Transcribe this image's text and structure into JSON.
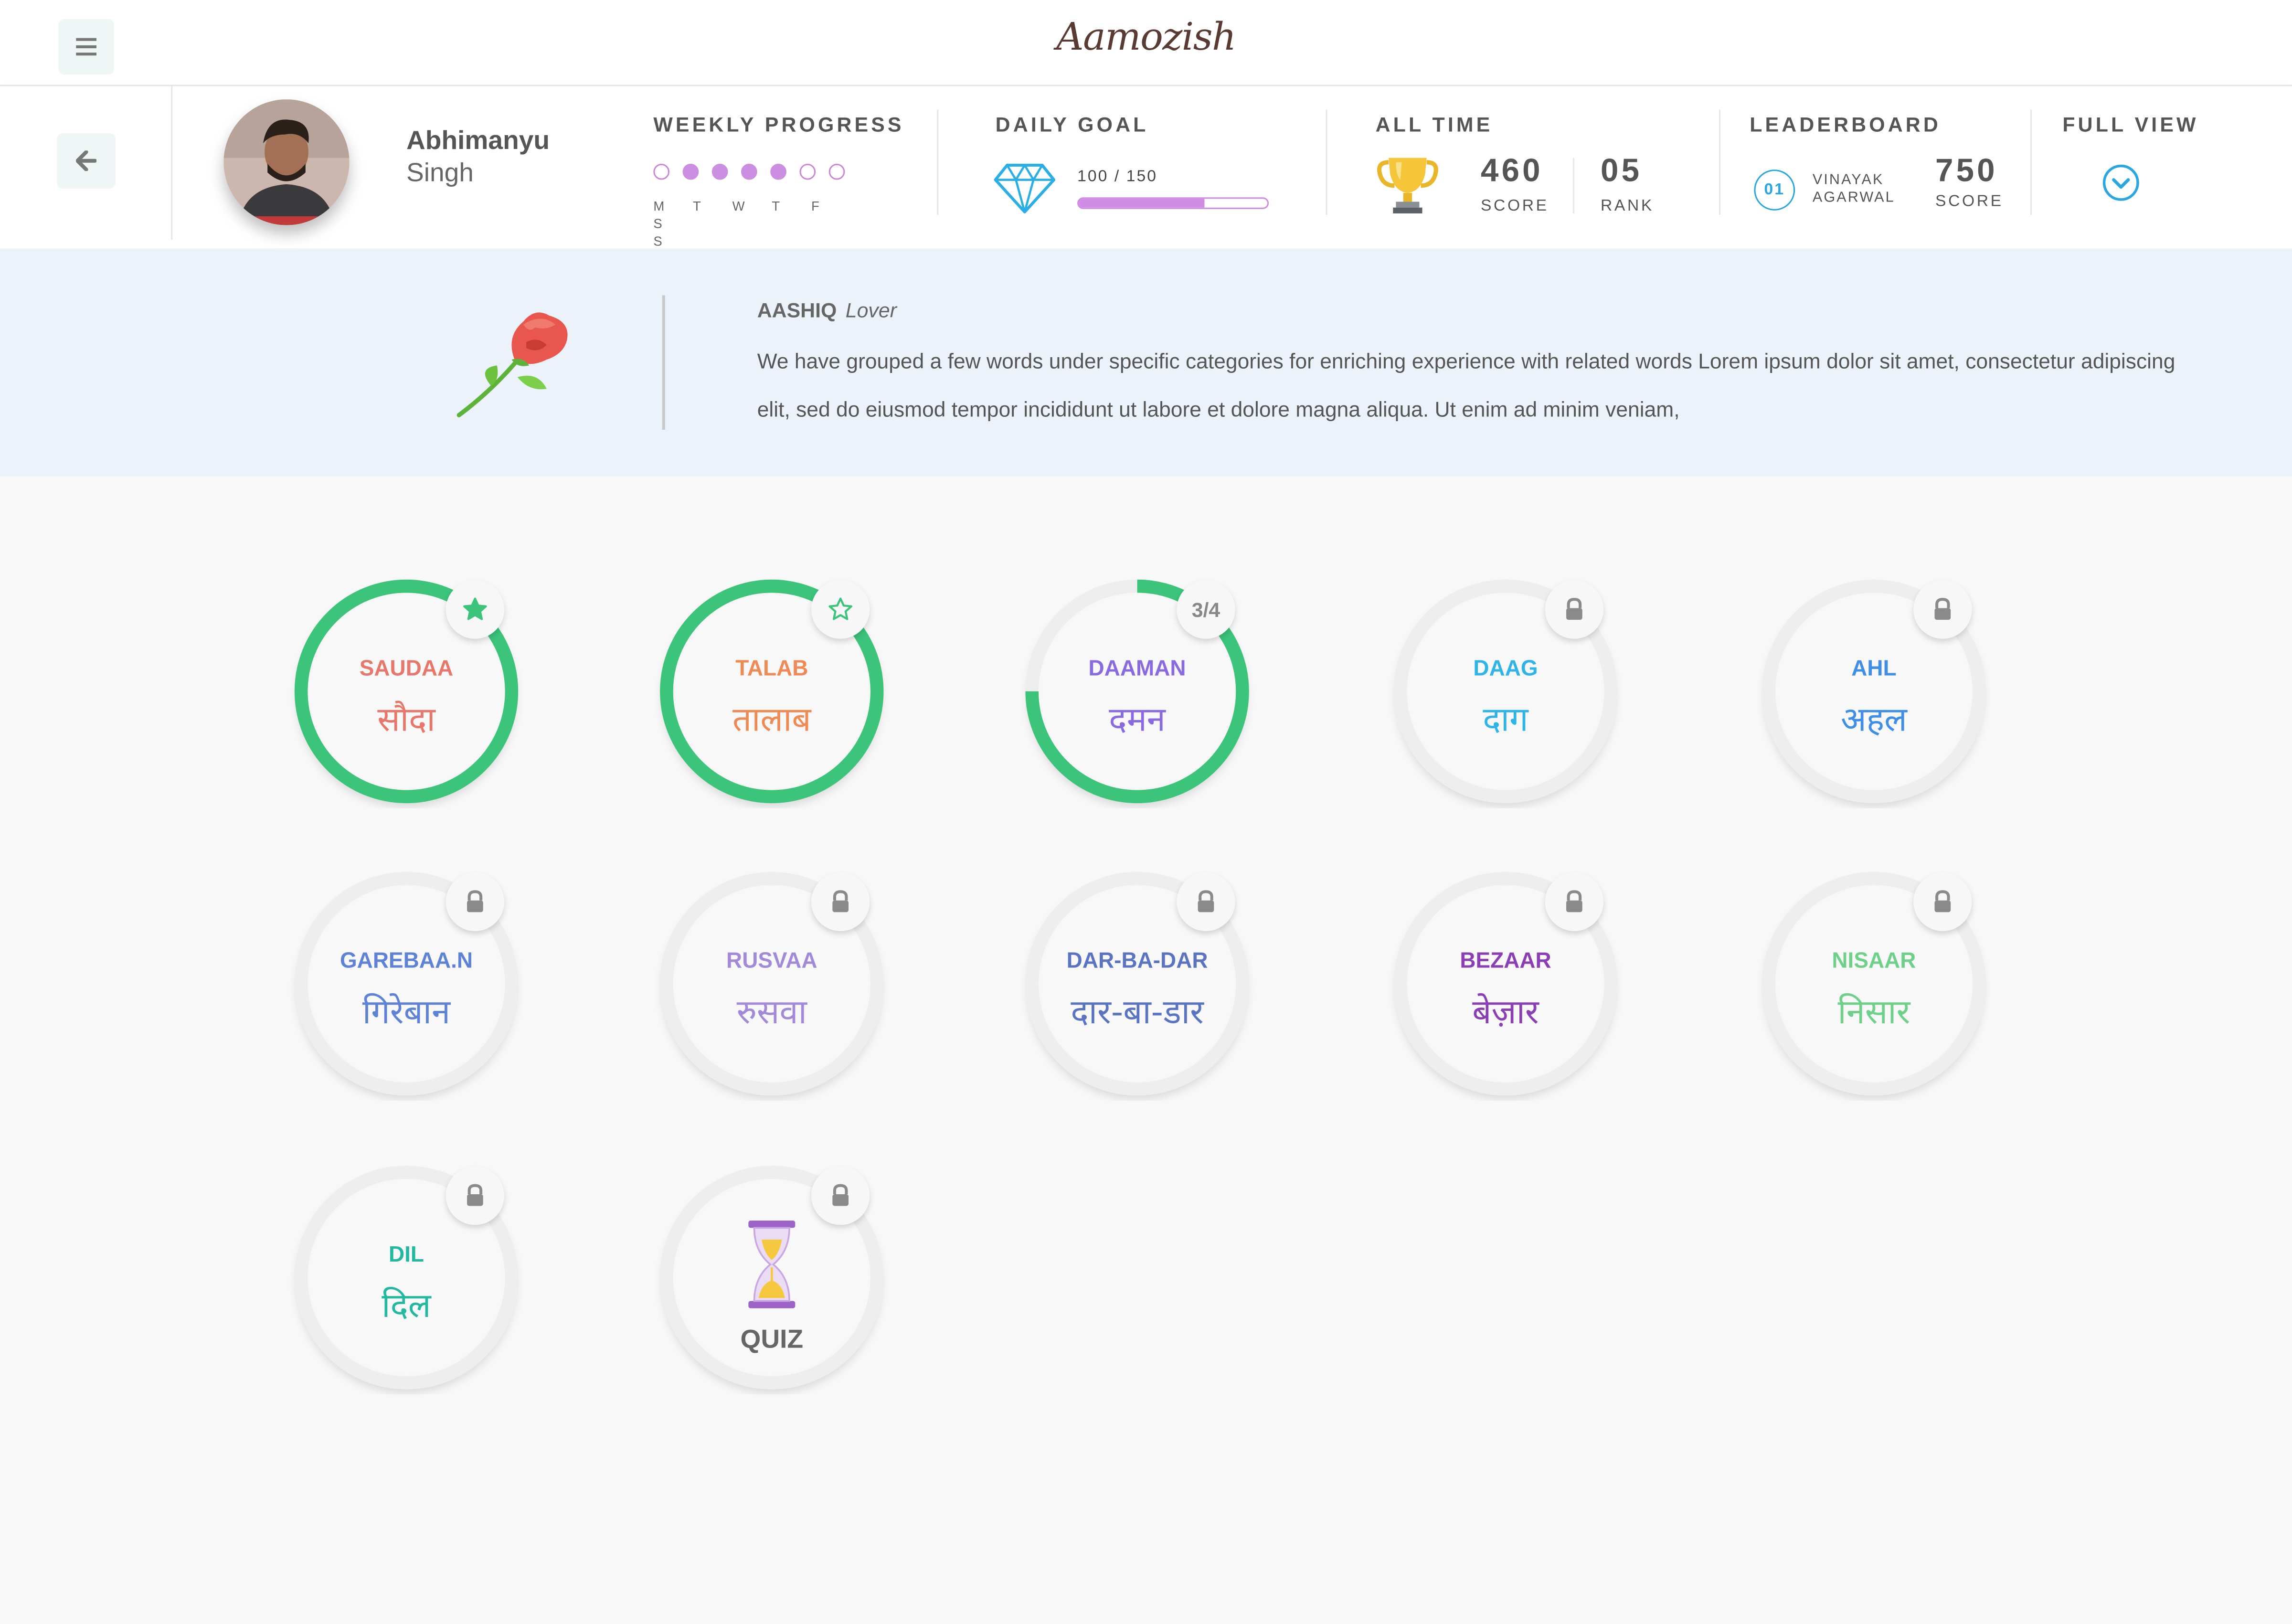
{
  "app": {
    "logo_text": "Aamozish"
  },
  "user": {
    "first_name": "Abhimanyu",
    "last_name": "Singh"
  },
  "weekly_progress": {
    "title": "WEEKLY PROGRESS",
    "days": [
      "M",
      "T",
      "W",
      "T",
      "F",
      "S",
      "S"
    ],
    "completed": [
      false,
      true,
      true,
      true,
      true,
      false,
      false
    ]
  },
  "daily_goal": {
    "title": "DAILY GOAL",
    "current": 100,
    "target": 150,
    "text": "100 / 150"
  },
  "all_time": {
    "title": "ALL TIME",
    "score": "460",
    "score_label": "SCORE",
    "rank": "05",
    "rank_label": "RANK"
  },
  "leaderboard": {
    "title": "LEADERBOARD",
    "position": "01",
    "name_line1": "VINAYAK",
    "name_line2": "AGARWAL",
    "score": "750",
    "score_label": "SCORE"
  },
  "full_view": {
    "title": "FULL VIEW"
  },
  "category": {
    "title": "AASHIQ",
    "subtitle": "Lover",
    "description": "We have grouped a few words under specific categories for enriching experience with related words Lorem ipsum dolor sit amet, consectetur adipiscing elit, sed do eiusmod tempor incididunt ut labore et dolore magna aliqua. Ut enim ad minim veniam,"
  },
  "words": [
    {
      "latin": "SAUDAA",
      "deva": "सौदा",
      "color": "#e7776b",
      "progress": 1.0,
      "badge": "star-filled"
    },
    {
      "latin": "TALAB",
      "deva": "तालाब",
      "color": "#ef8a55",
      "progress": 1.0,
      "badge": "star-outline"
    },
    {
      "latin": "DAAMAN",
      "deva": "दमन",
      "color": "#8a6ae0",
      "progress": 0.75,
      "badge": "fraction",
      "badge_text": "3/4"
    },
    {
      "latin": "DAAG",
      "deva": "दाग",
      "color": "#2eb4e8",
      "progress": 0,
      "badge": "lock"
    },
    {
      "latin": "AHL",
      "deva": "अहल",
      "color": "#3f8ee8",
      "progress": 0,
      "badge": "lock"
    },
    {
      "latin": "GAREBAA.N",
      "deva": "गिरेबान",
      "color": "#5e82d6",
      "progress": 0,
      "badge": "lock"
    },
    {
      "latin": "RUSVAA",
      "deva": "रुसवा",
      "color": "#a38ad8",
      "progress": 0,
      "badge": "lock"
    },
    {
      "latin": "DAR-BA-DAR",
      "deva": "दार-बा-डार",
      "color": "#5b74c2",
      "progress": 0,
      "badge": "lock"
    },
    {
      "latin": "BEZAAR",
      "deva": "बेज़ार",
      "color": "#8a3fb5",
      "progress": 0,
      "badge": "lock"
    },
    {
      "latin": "NISAAR",
      "deva": "निसार",
      "color": "#6fd08a",
      "progress": 0,
      "badge": "lock"
    },
    {
      "latin": "DIL",
      "deva": "दिल",
      "color": "#23b8a0",
      "progress": 0,
      "badge": "lock"
    }
  ],
  "quiz": {
    "label": "QUIZ",
    "badge": "lock"
  },
  "colors": {
    "progress_green": "#3bc47a",
    "weekly_purple": "#cc8ee0",
    "leaderboard_blue": "#2aa6e0",
    "banner_bg": "#ecf2fa"
  }
}
